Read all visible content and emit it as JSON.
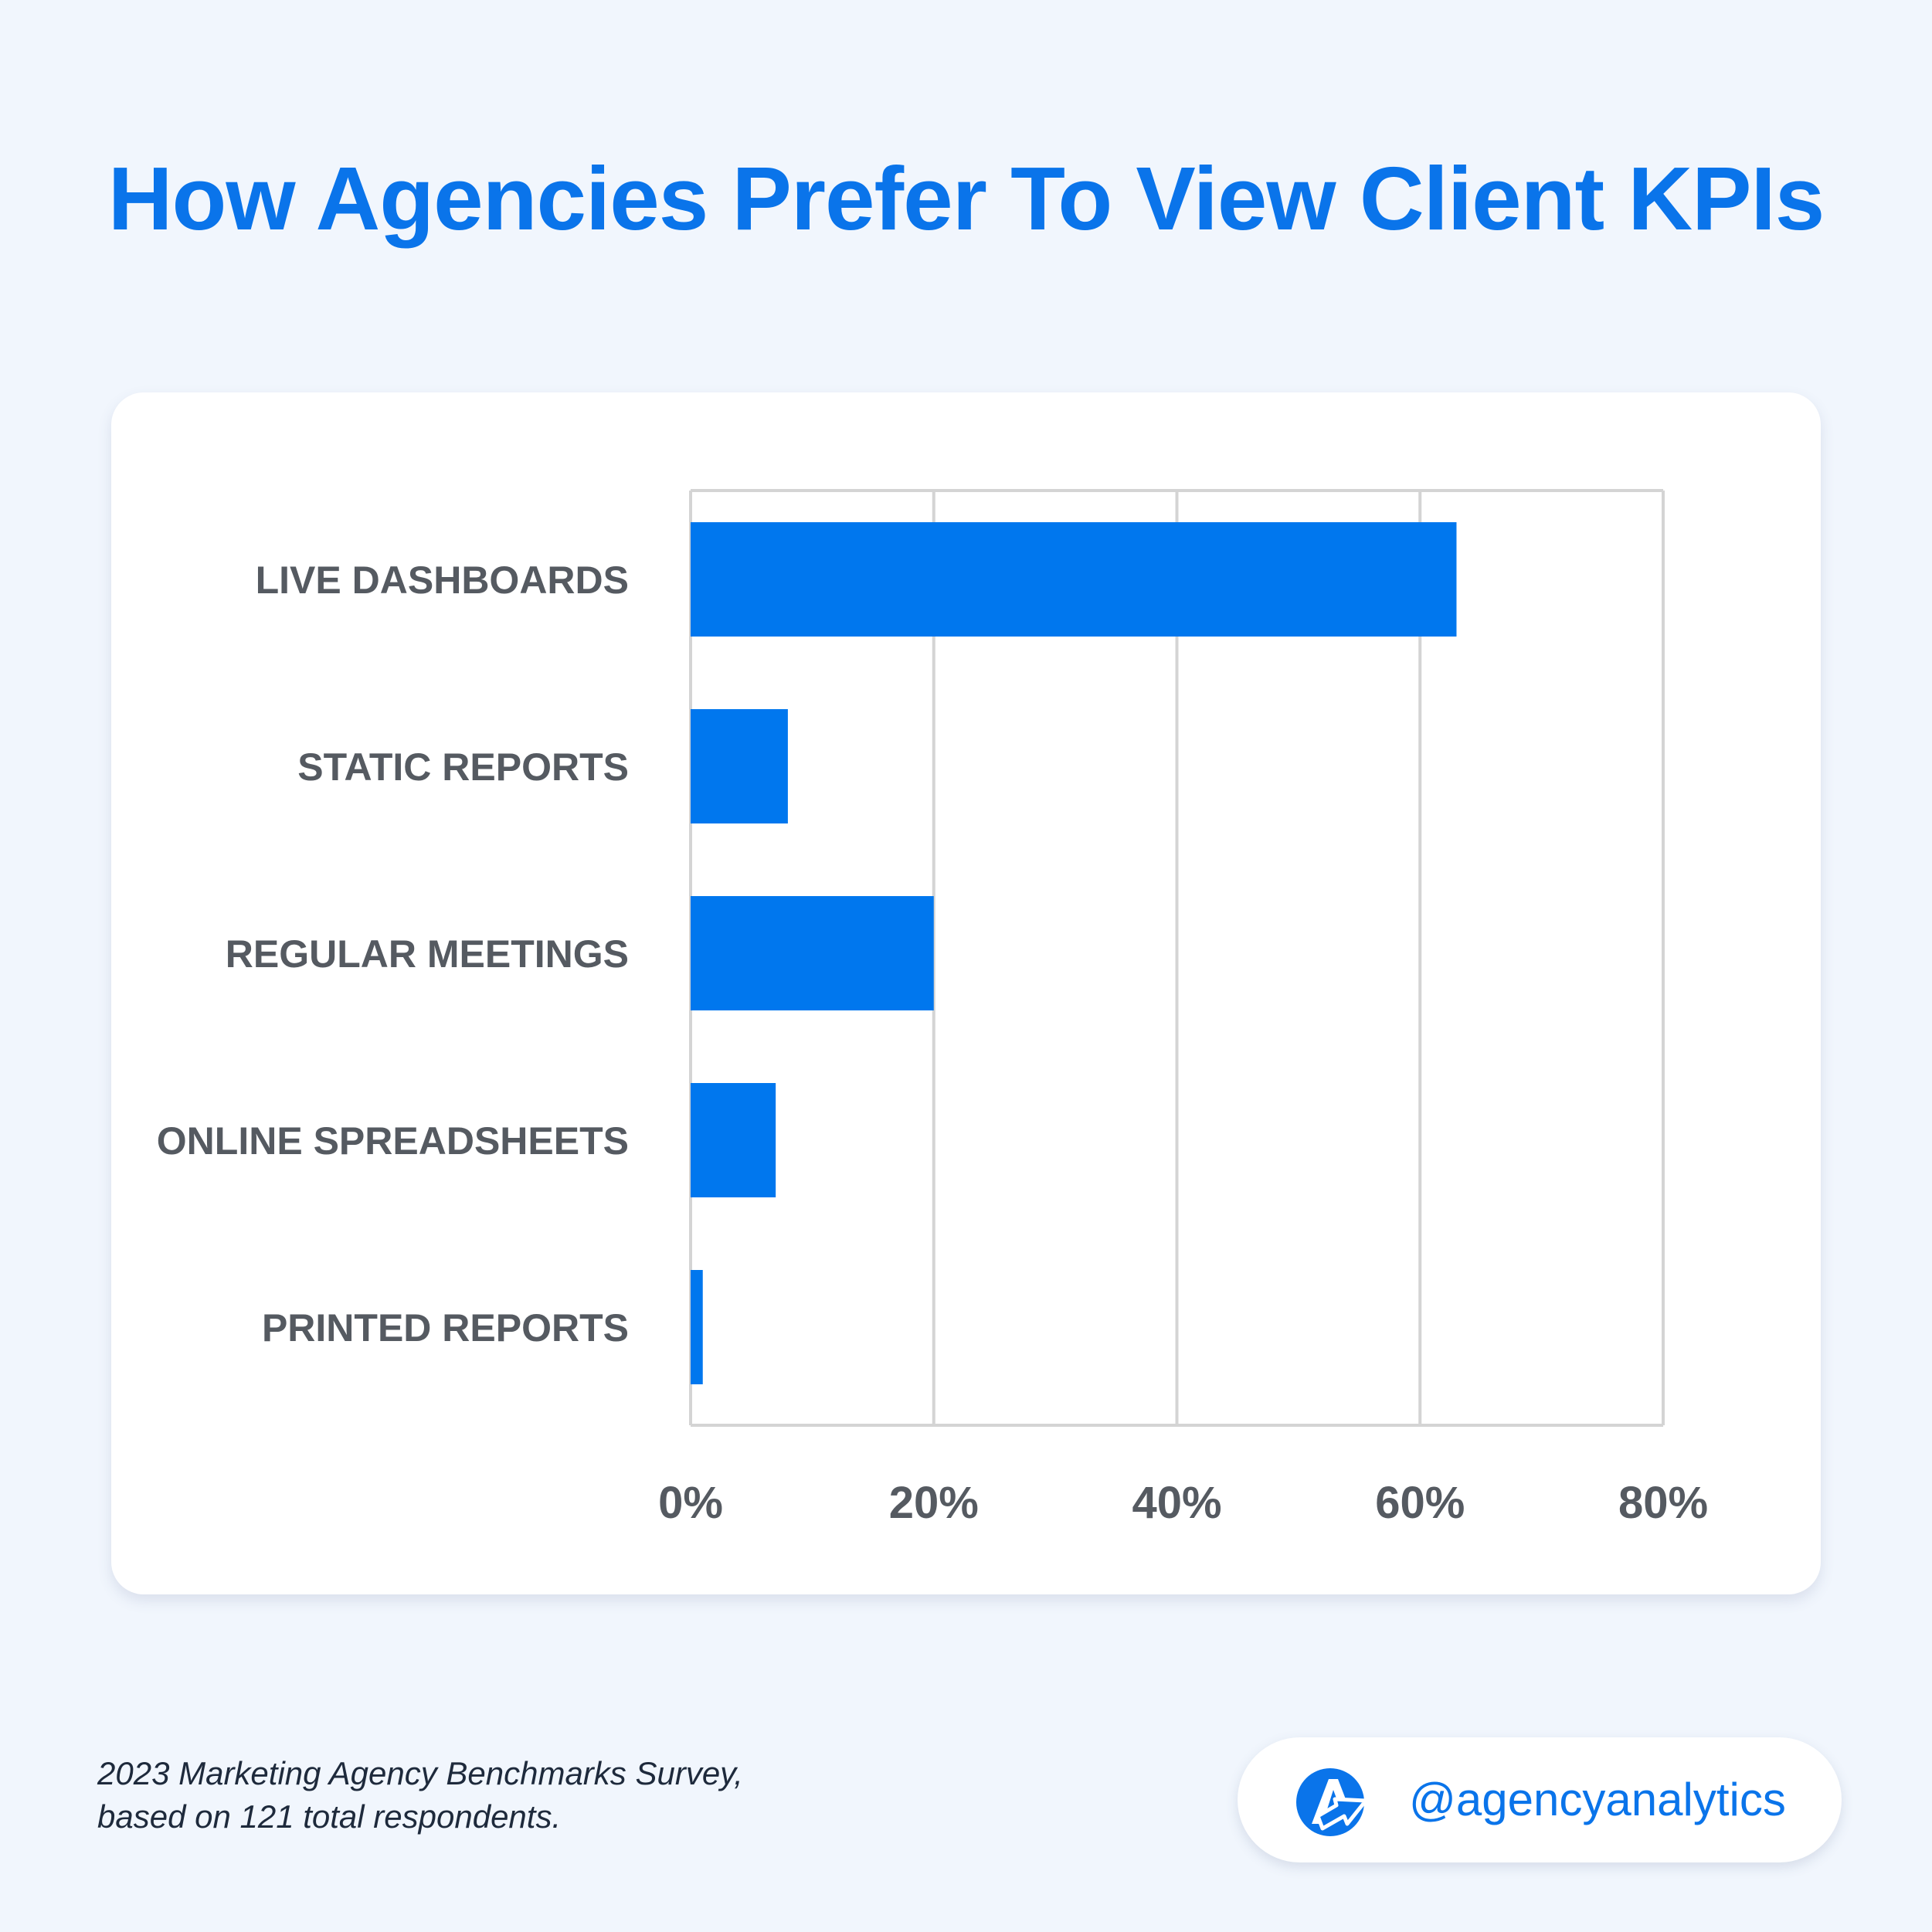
{
  "title": "How Agencies Prefer To View Client KPIs",
  "colors": {
    "bar": "#0077ee",
    "grid": "#d4d4d4",
    "title": "#0a74ea",
    "background": "#f1f6fd"
  },
  "chart_data": {
    "type": "bar",
    "orientation": "horizontal",
    "title": "How Agencies Prefer To View Client KPIs",
    "xlabel": "",
    "ylabel": "",
    "categories": [
      "LIVE DASHBOARDS",
      "STATIC REPORTS",
      "REGULAR MEETINGS",
      "ONLINE SPREADSHEETS",
      "PRINTED REPORTS"
    ],
    "values": [
      63,
      8,
      20,
      7,
      1
    ],
    "xlim": [
      0,
      80
    ],
    "ticks": [
      0,
      20,
      40,
      60,
      80
    ],
    "tick_labels": [
      "0%",
      "20%",
      "40%",
      "60%",
      "80%"
    ],
    "grid": true,
    "legend": "none"
  },
  "source": {
    "line1": "2023 Marketing Agency Benchmarks Survey,",
    "line2": "based on 121 total respondents."
  },
  "brand": {
    "handle": "@agencyanalytics",
    "logo_icon": "agencyanalytics-logo-icon"
  }
}
